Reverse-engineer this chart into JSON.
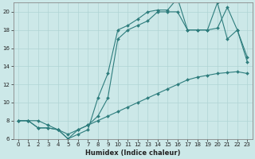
{
  "xlabel": "Humidex (Indice chaleur)",
  "bg_color": "#cce8e8",
  "line_color": "#2e7d7d",
  "grid_color": "#b0d4d4",
  "curve1_x": [
    0,
    1,
    2,
    3,
    4,
    5,
    6,
    7,
    8,
    9,
    10,
    11,
    12,
    13,
    14,
    15,
    16,
    17,
    18,
    19,
    20,
    21,
    22,
    23
  ],
  "curve1_y": [
    8,
    8,
    8,
    7.5,
    7,
    6.5,
    7,
    7.5,
    8,
    8.5,
    9,
    9.5,
    10,
    10.5,
    11,
    11.5,
    12,
    12.5,
    12.8,
    13,
    13.2,
    13.3,
    13.4,
    13.2
  ],
  "curve2_x": [
    0,
    1,
    2,
    3,
    4,
    5,
    6,
    7,
    8,
    9,
    10,
    11,
    12,
    13,
    14,
    15,
    16,
    17,
    18,
    19,
    20,
    21,
    22,
    23
  ],
  "curve2_y": [
    8,
    8,
    7.2,
    7.2,
    7,
    6,
    6.5,
    7,
    10.5,
    13.2,
    18,
    18.5,
    19.2,
    20,
    20.2,
    20.2,
    21.5,
    18,
    18,
    18,
    21,
    17,
    18,
    15
  ],
  "curve3_x": [
    0,
    1,
    2,
    3,
    4,
    5,
    6,
    7,
    8,
    9,
    10,
    11,
    12,
    13,
    14,
    15,
    16,
    17,
    18,
    19,
    20,
    21,
    22,
    23
  ],
  "curve3_y": [
    8,
    8,
    7.2,
    7.2,
    7,
    6,
    7,
    7.5,
    8.5,
    10.5,
    17,
    18,
    18.5,
    19,
    20,
    20,
    20,
    18,
    18,
    18,
    18.2,
    20.5,
    18,
    14.5
  ],
  "xlim": [
    -0.5,
    23.5
  ],
  "ylim": [
    6,
    21
  ],
  "yticks": [
    6,
    8,
    10,
    12,
    14,
    16,
    18,
    20
  ],
  "xticks": [
    0,
    1,
    2,
    3,
    4,
    5,
    6,
    7,
    8,
    9,
    10,
    11,
    12,
    13,
    14,
    15,
    16,
    17,
    18,
    19,
    20,
    21,
    22,
    23
  ]
}
